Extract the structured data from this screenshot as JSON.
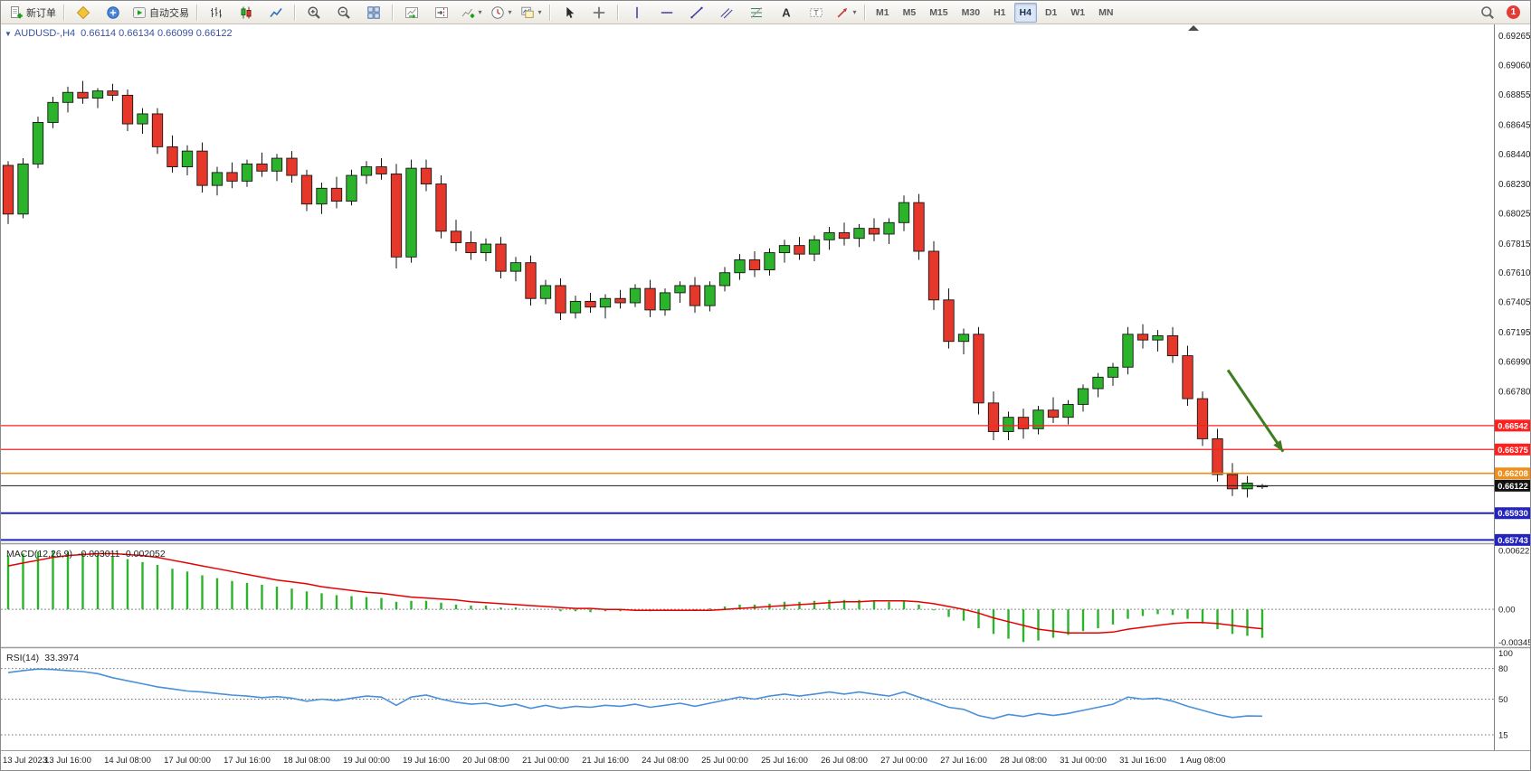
{
  "toolbar": {
    "groups": [
      {
        "name": "trade",
        "items": [
          {
            "id": "new-order-button",
            "icon": "new-order-icon",
            "label": "新订单"
          }
        ]
      },
      {
        "name": "apps",
        "items": [
          {
            "id": "metaeditor-button",
            "icon": "metaeditor-icon"
          },
          {
            "id": "data-window-button",
            "icon": "data-window-icon"
          },
          {
            "id": "autotrading-button",
            "icon": "autotrading-icon",
            "label": "自动交易"
          }
        ]
      },
      {
        "name": "chart-types",
        "items": [
          {
            "id": "bars-chart-button",
            "icon": "bars-chart-icon"
          },
          {
            "id": "candles-chart-button",
            "icon": "candles-chart-icon"
          },
          {
            "id": "line-chart-button",
            "icon": "line-chart-icon"
          }
        ]
      },
      {
        "name": "zoom",
        "items": [
          {
            "id": "zoom-in-button",
            "icon": "zoom-in-icon"
          },
          {
            "id": "zoom-out-button",
            "icon": "zoom-out-icon"
          },
          {
            "id": "tile-windows-button",
            "icon": "tile-windows-icon"
          }
        ]
      },
      {
        "name": "chart-controls",
        "items": [
          {
            "id": "auto-scroll-button",
            "icon": "auto-scroll-icon"
          },
          {
            "id": "chart-shift-button",
            "icon": "chart-shift-icon"
          },
          {
            "id": "indicators-button",
            "icon": "indicators-icon",
            "dropdown": true
          },
          {
            "id": "periods-button",
            "icon": "periods-icon",
            "dropdown": true
          },
          {
            "id": "templates-button",
            "icon": "templates-icon",
            "dropdown": true
          }
        ]
      },
      {
        "name": "cursors",
        "items": [
          {
            "id": "cursor-button",
            "icon": "cursor-icon"
          },
          {
            "id": "crosshair-button",
            "icon": "crosshair-icon"
          }
        ]
      },
      {
        "name": "objects",
        "items": [
          {
            "id": "vertical-line-button",
            "icon": "vertical-line-icon"
          },
          {
            "id": "horizontal-line-button",
            "icon": "horizontal-line-icon"
          },
          {
            "id": "trendline-button",
            "icon": "trendline-icon"
          },
          {
            "id": "channel-button",
            "icon": "channel-icon"
          },
          {
            "id": "fibonacci-button",
            "icon": "fibonacci-icon"
          },
          {
            "id": "text-button",
            "icon": "text-icon"
          },
          {
            "id": "label-button",
            "icon": "label-icon"
          },
          {
            "id": "arrows-button",
            "icon": "arrows-icon",
            "dropdown": true
          }
        ]
      }
    ],
    "timeframes": {
      "items": [
        "M1",
        "M5",
        "M15",
        "M30",
        "H1",
        "H4",
        "D1",
        "W1",
        "MN"
      ],
      "active": "H4"
    },
    "right": {
      "search_icon": "search-icon",
      "notification_count": "1"
    }
  },
  "chart": {
    "title": "AUDUSD-,H4",
    "quote": "0.66114 0.66134 0.66099 0.66122"
  },
  "indicators": {
    "macd": {
      "name": "MACD(12,26,9)",
      "values": "-0.003011 -0.002052"
    },
    "rsi": {
      "name": "RSI(14)",
      "value": "33.3974"
    }
  },
  "chart_data": [
    {
      "type": "candlestick",
      "symbol": "AUDUSD-",
      "timeframe": "H4",
      "ylim": [
        0.6572,
        0.69345
      ],
      "colors": {
        "up": "#2bb32b",
        "down": "#e6372b",
        "wick": "#161616",
        "border": "#161616"
      },
      "y_axis_labels": [
        0.69265,
        0.6906,
        0.68855,
        0.68645,
        0.6844,
        0.6823,
        0.68025,
        0.67815,
        0.6761,
        0.67405,
        0.67195,
        0.6699,
        0.6678
      ],
      "current_price": 0.66122,
      "hlines": [
        {
          "price": 0.66542,
          "color": "#ff1f1f",
          "width": 1.3,
          "name": "resistance-line-1"
        },
        {
          "price": 0.66375,
          "color": "#ff1f1f",
          "width": 1.3,
          "name": "resistance-line-2"
        },
        {
          "price": 0.66208,
          "color": "#ef8e1b",
          "width": 1.6,
          "name": "support-line-1"
        },
        {
          "price": 0.6593,
          "color": "#2323bd",
          "width": 2,
          "name": "support-line-2"
        },
        {
          "price": 0.65743,
          "color": "#2323bd",
          "width": 2,
          "name": "support-line-3"
        }
      ],
      "arrow_object": {
        "from_index": 81.7,
        "from_price": 0.6693,
        "to_index": 85.4,
        "to_price": 0.6636,
        "color": "#3f7d21"
      },
      "time_labels": [
        {
          "i": 0,
          "t": "13 Jul 2023"
        },
        {
          "i": 4,
          "t": "13 Jul 16:00"
        },
        {
          "i": 8,
          "t": "14 Jul 08:00"
        },
        {
          "i": 12,
          "t": "17 Jul 00:00"
        },
        {
          "i": 16,
          "t": "17 Jul 16:00"
        },
        {
          "i": 20,
          "t": "18 Jul 08:00"
        },
        {
          "i": 24,
          "t": "19 Jul 00:00"
        },
        {
          "i": 28,
          "t": "19 Jul 16:00"
        },
        {
          "i": 32,
          "t": "20 Jul 08:00"
        },
        {
          "i": 36,
          "t": "21 Jul 00:00"
        },
        {
          "i": 40,
          "t": "21 Jul 16:00"
        },
        {
          "i": 44,
          "t": "24 Jul 08:00"
        },
        {
          "i": 48,
          "t": "25 Jul 00:00"
        },
        {
          "i": 52,
          "t": "25 Jul 16:00"
        },
        {
          "i": 56,
          "t": "26 Jul 08:00"
        },
        {
          "i": 60,
          "t": "27 Jul 00:00"
        },
        {
          "i": 64,
          "t": "27 Jul 16:00"
        },
        {
          "i": 68,
          "t": "28 Jul 08:00"
        },
        {
          "i": 72,
          "t": "31 Jul 00:00"
        },
        {
          "i": 76,
          "t": "31 Jul 16:00"
        },
        {
          "i": 80,
          "t": "1 Aug 08:00"
        }
      ],
      "ohlc": [
        [
          0.6836,
          0.6839,
          0.6795,
          0.6802
        ],
        [
          0.6802,
          0.6841,
          0.6799,
          0.6837
        ],
        [
          0.6837,
          0.687,
          0.6834,
          0.6866
        ],
        [
          0.6866,
          0.6884,
          0.6862,
          0.688
        ],
        [
          0.688,
          0.6891,
          0.6873,
          0.6887
        ],
        [
          0.6887,
          0.6895,
          0.6879,
          0.6883
        ],
        [
          0.6883,
          0.689,
          0.6876,
          0.6888
        ],
        [
          0.6888,
          0.6893,
          0.6881,
          0.6885
        ],
        [
          0.6885,
          0.6889,
          0.686,
          0.6865
        ],
        [
          0.6865,
          0.6876,
          0.6858,
          0.6872
        ],
        [
          0.6872,
          0.6876,
          0.6844,
          0.6849
        ],
        [
          0.6849,
          0.6857,
          0.6831,
          0.6835
        ],
        [
          0.6835,
          0.685,
          0.6829,
          0.6846
        ],
        [
          0.6846,
          0.6852,
          0.6817,
          0.6822
        ],
        [
          0.6822,
          0.6835,
          0.6815,
          0.6831
        ],
        [
          0.6831,
          0.6838,
          0.682,
          0.6825
        ],
        [
          0.6825,
          0.684,
          0.6821,
          0.6837
        ],
        [
          0.6837,
          0.6845,
          0.6828,
          0.6832
        ],
        [
          0.6832,
          0.6844,
          0.6825,
          0.6841
        ],
        [
          0.6841,
          0.6846,
          0.6824,
          0.6829
        ],
        [
          0.6829,
          0.6833,
          0.6804,
          0.6809
        ],
        [
          0.6809,
          0.6824,
          0.6802,
          0.682
        ],
        [
          0.682,
          0.6828,
          0.6806,
          0.6811
        ],
        [
          0.6811,
          0.6833,
          0.6808,
          0.6829
        ],
        [
          0.6829,
          0.6839,
          0.6823,
          0.6835
        ],
        [
          0.6835,
          0.6841,
          0.6826,
          0.683
        ],
        [
          0.683,
          0.6837,
          0.6764,
          0.6772
        ],
        [
          0.6772,
          0.684,
          0.6768,
          0.6834
        ],
        [
          0.6834,
          0.684,
          0.6818,
          0.6823
        ],
        [
          0.6823,
          0.6829,
          0.6785,
          0.679
        ],
        [
          0.679,
          0.6798,
          0.6776,
          0.6782
        ],
        [
          0.6782,
          0.679,
          0.677,
          0.6775
        ],
        [
          0.6775,
          0.6785,
          0.6769,
          0.6781
        ],
        [
          0.6781,
          0.6786,
          0.6757,
          0.6762
        ],
        [
          0.6762,
          0.6772,
          0.6755,
          0.6768
        ],
        [
          0.6768,
          0.6773,
          0.6738,
          0.6743
        ],
        [
          0.6743,
          0.6756,
          0.6739,
          0.6752
        ],
        [
          0.6752,
          0.6757,
          0.6728,
          0.6733
        ],
        [
          0.6733,
          0.6745,
          0.6729,
          0.6741
        ],
        [
          0.6741,
          0.6747,
          0.6733,
          0.6737
        ],
        [
          0.6737,
          0.6746,
          0.6729,
          0.6743
        ],
        [
          0.6743,
          0.6749,
          0.6736,
          0.674
        ],
        [
          0.674,
          0.6753,
          0.6737,
          0.675
        ],
        [
          0.675,
          0.6756,
          0.673,
          0.6735
        ],
        [
          0.6735,
          0.675,
          0.6731,
          0.6747
        ],
        [
          0.6747,
          0.6755,
          0.674,
          0.6752
        ],
        [
          0.6752,
          0.6758,
          0.6733,
          0.6738
        ],
        [
          0.6738,
          0.6755,
          0.6734,
          0.6752
        ],
        [
          0.6752,
          0.6765,
          0.6748,
          0.6761
        ],
        [
          0.6761,
          0.6774,
          0.6756,
          0.677
        ],
        [
          0.677,
          0.6776,
          0.6758,
          0.6763
        ],
        [
          0.6763,
          0.6778,
          0.6759,
          0.6775
        ],
        [
          0.6775,
          0.6784,
          0.6768,
          0.678
        ],
        [
          0.678,
          0.6786,
          0.677,
          0.6774
        ],
        [
          0.6774,
          0.6787,
          0.6769,
          0.6784
        ],
        [
          0.6784,
          0.6793,
          0.6777,
          0.6789
        ],
        [
          0.6789,
          0.6796,
          0.678,
          0.6785
        ],
        [
          0.6785,
          0.6795,
          0.6779,
          0.6792
        ],
        [
          0.6792,
          0.6799,
          0.6783,
          0.6788
        ],
        [
          0.6788,
          0.6799,
          0.6781,
          0.6796
        ],
        [
          0.6796,
          0.6815,
          0.679,
          0.681
        ],
        [
          0.681,
          0.6816,
          0.677,
          0.6776
        ],
        [
          0.6776,
          0.6783,
          0.6735,
          0.6742
        ],
        [
          0.6742,
          0.675,
          0.6708,
          0.6713
        ],
        [
          0.6713,
          0.6722,
          0.6704,
          0.6718
        ],
        [
          0.6718,
          0.6723,
          0.6662,
          0.667
        ],
        [
          0.667,
          0.6678,
          0.6644,
          0.665
        ],
        [
          0.665,
          0.6664,
          0.6644,
          0.666
        ],
        [
          0.666,
          0.6666,
          0.6645,
          0.6652
        ],
        [
          0.6652,
          0.6668,
          0.6648,
          0.6665
        ],
        [
          0.6665,
          0.6674,
          0.6656,
          0.666
        ],
        [
          0.666,
          0.6672,
          0.6655,
          0.6669
        ],
        [
          0.6669,
          0.6683,
          0.6664,
          0.668
        ],
        [
          0.668,
          0.6691,
          0.6674,
          0.6688
        ],
        [
          0.6688,
          0.6698,
          0.6682,
          0.6695
        ],
        [
          0.6695,
          0.6723,
          0.669,
          0.6718
        ],
        [
          0.6718,
          0.6725,
          0.6708,
          0.6714
        ],
        [
          0.6714,
          0.6721,
          0.6706,
          0.6717
        ],
        [
          0.6717,
          0.6723,
          0.6698,
          0.6703
        ],
        [
          0.6703,
          0.671,
          0.6668,
          0.6673
        ],
        [
          0.6673,
          0.6678,
          0.664,
          0.6645
        ],
        [
          0.6645,
          0.6652,
          0.6615,
          0.662
        ],
        [
          0.662,
          0.6628,
          0.6605,
          0.661
        ],
        [
          0.661,
          0.6619,
          0.6604,
          0.6614
        ],
        [
          0.66114,
          0.66134,
          0.66099,
          0.66122
        ]
      ]
    },
    {
      "type": "macd",
      "label": "MACD(12,26,9)",
      "current_values": [
        -0.003011,
        -0.002052
      ],
      "ylim": [
        -0.004,
        0.0069
      ],
      "colors": {
        "histogram": "#2bb32b",
        "signal": "#e60000"
      },
      "y_axis_labels": [
        {
          "v": 0.006222,
          "t": "0.006222"
        },
        {
          "v": 0,
          "t": "0.00"
        },
        {
          "v": -0.003451,
          "t": "-0.003451"
        }
      ],
      "histogram": [
        0.0057,
        0.0059,
        0.0061,
        0.0062,
        0.0061,
        0.006,
        0.0058,
        0.0056,
        0.0053,
        0.005,
        0.0047,
        0.0043,
        0.004,
        0.0036,
        0.0033,
        0.003,
        0.0028,
        0.0026,
        0.0024,
        0.0022,
        0.0019,
        0.0017,
        0.0015,
        0.0014,
        0.0013,
        0.0012,
        0.0008,
        0.0009,
        0.0009,
        0.0007,
        0.0005,
        0.0004,
        0.0004,
        0.0002,
        0.0002,
        0.0,
        0.0,
        -0.0002,
        -0.0002,
        -0.0003,
        -0.0002,
        -0.0002,
        -0.0001,
        -0.0002,
        -0.0001,
        0.0,
        -0.0001,
        0.0001,
        0.0003,
        0.0005,
        0.0005,
        0.0006,
        0.0008,
        0.0008,
        0.0009,
        0.001,
        0.001,
        0.001,
        0.0009,
        0.0008,
        0.0009,
        0.0005,
        -0.0001,
        -0.0008,
        -0.0012,
        -0.002,
        -0.0026,
        -0.0031,
        -0.00345,
        -0.0033,
        -0.003,
        -0.0027,
        -0.0023,
        -0.002,
        -0.0016,
        -0.001,
        -0.0007,
        -0.0005,
        -0.0006,
        -0.001,
        -0.0015,
        -0.0021,
        -0.0026,
        -0.0028,
        -0.003011
      ],
      "signal": [
        0.0046,
        0.0049,
        0.0052,
        0.0055,
        0.0057,
        0.0058,
        0.0059,
        0.0059,
        0.0058,
        0.0057,
        0.0055,
        0.0052,
        0.0049,
        0.0046,
        0.0043,
        0.004,
        0.0037,
        0.0034,
        0.0031,
        0.0029,
        0.0027,
        0.0024,
        0.0022,
        0.002,
        0.0018,
        0.0017,
        0.0015,
        0.0013,
        0.0012,
        0.0011,
        0.001,
        0.0008,
        0.0007,
        0.0006,
        0.0005,
        0.0004,
        0.0003,
        0.0002,
        0.0001,
        0.0001,
        0.0,
        0.0,
        -0.0001,
        -0.0001,
        -0.0001,
        -0.0001,
        -0.0001,
        -0.0001,
        0.0,
        0.0001,
        0.0002,
        0.0003,
        0.0004,
        0.0005,
        0.0006,
        0.0007,
        0.0008,
        0.0008,
        0.0009,
        0.0009,
        0.0009,
        0.0008,
        0.0006,
        0.0003,
        0.0,
        -0.0004,
        -0.0009,
        -0.0013,
        -0.0017,
        -0.0021,
        -0.0023,
        -0.0025,
        -0.0025,
        -0.0025,
        -0.0024,
        -0.0021,
        -0.0019,
        -0.0017,
        -0.0015,
        -0.0014,
        -0.0014,
        -0.0015,
        -0.0017,
        -0.0019,
        -0.002052
      ]
    },
    {
      "type": "rsi",
      "label": "RSI(14)",
      "current_value": 33.3974,
      "ylim": [
        0,
        100
      ],
      "levels": [
        80,
        50,
        15
      ],
      "colors": {
        "line": "#4a90d9",
        "level": "#707070"
      },
      "y_axis_labels": [
        {
          "v": 100,
          "t": "100"
        },
        {
          "v": 80,
          "t": "80"
        },
        {
          "v": 50,
          "t": "50"
        },
        {
          "v": 15,
          "t": "15"
        }
      ],
      "series": [
        76,
        78,
        79.5,
        79,
        78,
        77,
        75,
        71,
        68,
        65,
        62,
        60,
        58,
        57,
        55.5,
        54,
        53,
        51.5,
        52.5,
        51,
        48,
        50,
        48.5,
        51,
        53,
        52,
        44,
        52,
        54,
        50,
        47,
        45,
        46,
        43,
        45,
        41,
        44,
        41,
        43,
        42,
        44,
        43,
        45,
        42,
        44,
        46,
        43,
        46,
        49,
        52,
        50,
        53,
        55,
        53,
        55,
        57,
        55,
        57,
        55,
        53,
        57,
        52,
        47,
        42,
        40,
        34,
        31,
        35,
        33,
        36,
        34,
        36,
        39,
        42,
        45,
        52,
        50,
        51,
        48,
        43,
        39,
        35,
        32,
        33.5,
        33.3974
      ]
    }
  ]
}
